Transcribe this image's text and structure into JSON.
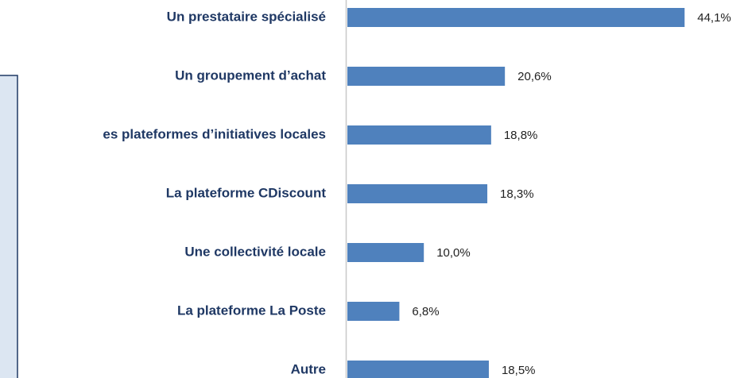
{
  "chart_data": {
    "type": "hbar",
    "categories": [
      "Un prestataire spécialisé",
      "Un groupement d’achat",
      "es plateformes d’initiatives locales ",
      "La plateforme CDiscount",
      "Une collectivité locale",
      "La plateforme La Poste",
      "Autre"
    ],
    "values": [
      44.1,
      20.6,
      18.8,
      18.3,
      10.0,
      6.8,
      18.5
    ],
    "value_labels": [
      "44,1%",
      "20,6%",
      "18,8%",
      "18,3%",
      "10,0%",
      "6,8%",
      "18,5%"
    ],
    "color": "#4f81bd",
    "xlim": [
      0,
      50
    ]
  }
}
